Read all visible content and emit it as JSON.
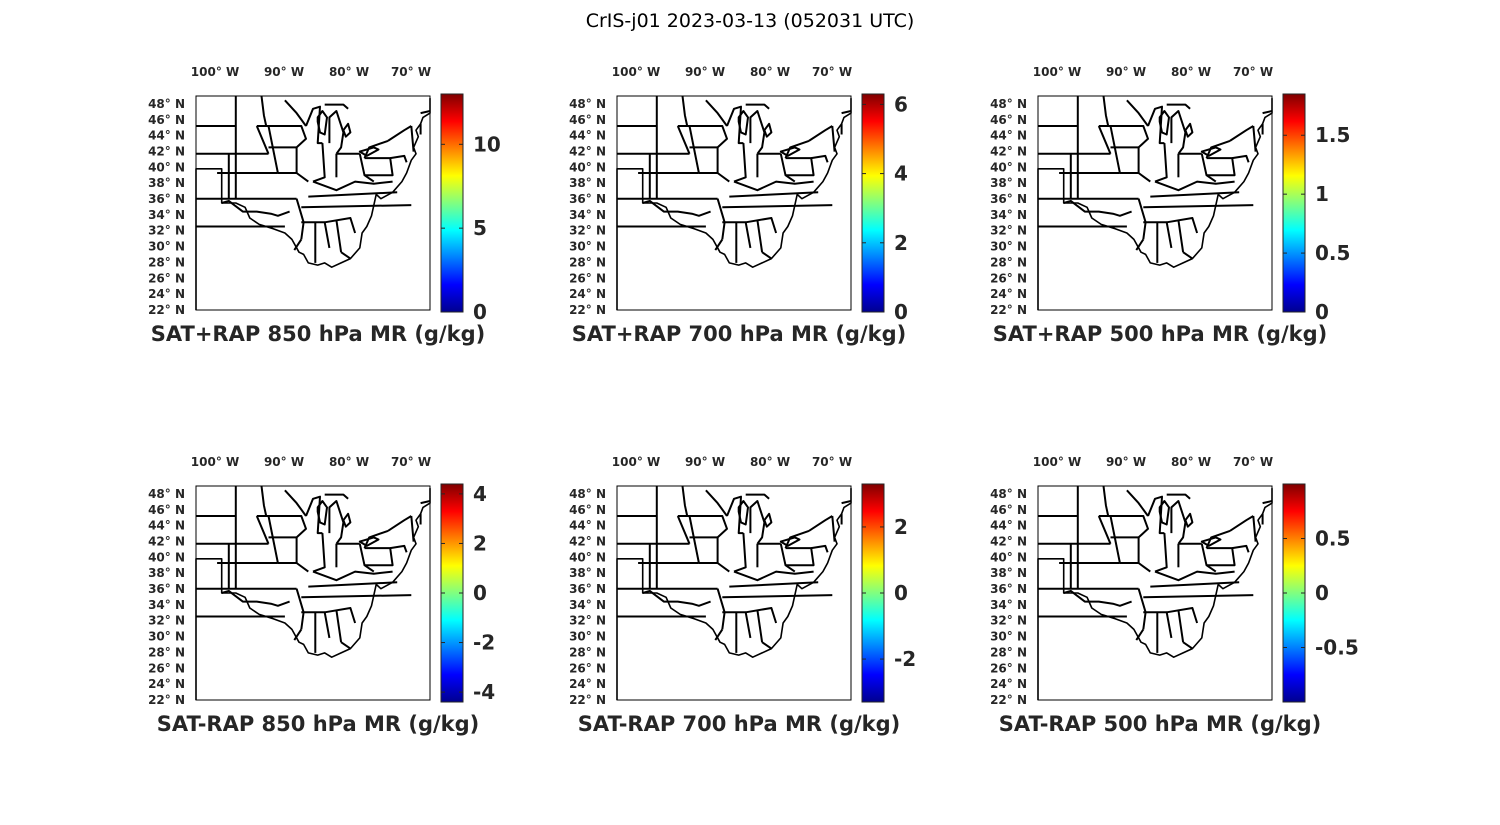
{
  "figure": {
    "title": "CrIS-j01 2023-03-13 (052031 UTC)",
    "colormap": "jet",
    "colormap_stops": [
      "#00008f",
      "#0000ff",
      "#0080ff",
      "#00ffff",
      "#80ff80",
      "#ffff00",
      "#ff8000",
      "#ff0000",
      "#800000"
    ]
  },
  "map_axes": {
    "lon_ticks": [
      "100° W",
      "90° W",
      "80° W",
      "70° W"
    ],
    "lat_ticks": [
      "48° N",
      "46° N",
      "44° N",
      "42° N",
      "40° N",
      "38° N",
      "36° N",
      "34° N",
      "32° N",
      "30° N",
      "28° N",
      "26° N",
      "24° N",
      "22° N"
    ],
    "extent": {
      "lon": [
        -105,
        -67
      ],
      "lat": [
        22,
        49
      ]
    }
  },
  "panels": [
    {
      "title": "SAT+RAP 850 hPa MR (g/kg)",
      "colorbar": {
        "range": [
          0,
          13
        ],
        "ticks": [
          "0",
          "5",
          "10"
        ],
        "tick_values": [
          0,
          5,
          10
        ]
      }
    },
    {
      "title": "SAT+RAP 700 hPa MR (g/kg)",
      "colorbar": {
        "range": [
          0,
          6.3
        ],
        "ticks": [
          "0",
          "2",
          "4",
          "6"
        ],
        "tick_values": [
          0,
          2,
          4,
          6
        ]
      }
    },
    {
      "title": "SAT+RAP 500 hPa MR (g/kg)",
      "colorbar": {
        "range": [
          0,
          1.85
        ],
        "ticks": [
          "0",
          "0.5",
          "1",
          "1.5"
        ],
        "tick_values": [
          0,
          0.5,
          1,
          1.5
        ]
      }
    },
    {
      "title": "SAT-RAP 850 hPa MR (g/kg)",
      "colorbar": {
        "range": [
          -4.4,
          4.4
        ],
        "ticks": [
          "-4",
          "-2",
          "0",
          "2",
          "4"
        ],
        "tick_values": [
          -4,
          -2,
          0,
          2,
          4
        ]
      }
    },
    {
      "title": "SAT-RAP 700 hPa MR (g/kg)",
      "colorbar": {
        "range": [
          -3.3,
          3.3
        ],
        "ticks": [
          "-2",
          "0",
          "2"
        ],
        "tick_values": [
          -2,
          0,
          2
        ]
      }
    },
    {
      "title": "SAT-RAP 500 hPa MR (g/kg)",
      "colorbar": {
        "range": [
          -1,
          1
        ],
        "ticks": [
          "-0.5",
          "0",
          "0.5"
        ],
        "tick_values": [
          -0.5,
          0,
          0.5
        ]
      }
    }
  ]
}
